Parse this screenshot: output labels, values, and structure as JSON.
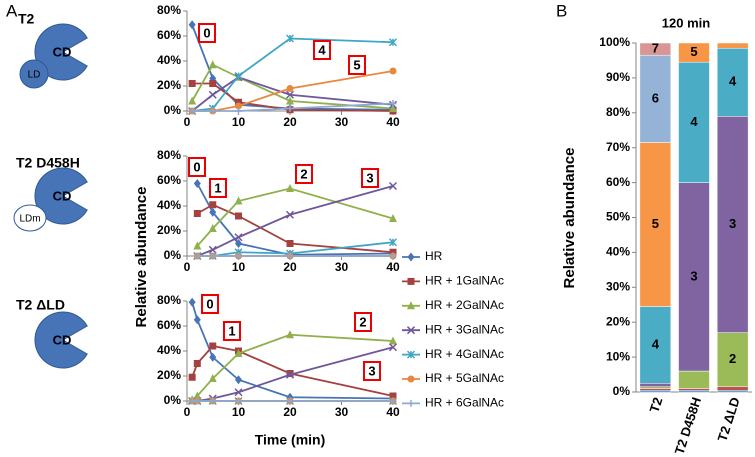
{
  "figure": {
    "panel_labels": [
      "A",
      "B"
    ],
    "constructs": [
      {
        "name": "T2",
        "domain": "CD",
        "linker": "LD"
      },
      {
        "name": "T2 D458H",
        "domain": "CD",
        "linker": "LDm"
      },
      {
        "name": "T2 ΔLD",
        "domain": "CD"
      }
    ]
  },
  "chart_data": [
    {
      "type": "line",
      "xlabel": "Time (min)",
      "ylabel": "Relative abundance",
      "xlim": [
        0,
        40
      ],
      "xticks": [
        0,
        10,
        20,
        30,
        40
      ],
      "ylim": [
        0,
        80
      ],
      "yticks": [
        {
          "value": 0,
          "label": "0%"
        },
        {
          "value": 20,
          "label": "20%"
        },
        {
          "value": 40,
          "label": "40%"
        },
        {
          "value": 60,
          "label": "60%"
        },
        {
          "value": 80,
          "label": "80%"
        }
      ],
      "series": [
        {
          "name": "HR",
          "color": "#4674b6",
          "marker": "diamond"
        },
        {
          "name": "HR + 1GalNAc",
          "color": "#a5413f",
          "marker": "square"
        },
        {
          "name": "HR + 2GalNAc",
          "color": "#8fb04b",
          "marker": "triangle"
        },
        {
          "name": "HR + 3GalNAc",
          "color": "#70569a",
          "marker": "x"
        },
        {
          "name": "HR + 4GalNAc",
          "color": "#40a6c4",
          "marker": "star"
        },
        {
          "name": "HR + 5GalNAc",
          "color": "#e8873e",
          "marker": "circle"
        },
        {
          "name": "HR + 6GalNAc",
          "color": "#8ba9d3",
          "marker": "plus"
        }
      ],
      "panels": [
        {
          "x": [
            1,
            5,
            10,
            20,
            40
          ],
          "values": [
            [
              69,
              26,
              5,
              2,
              1
            ],
            [
              22,
              22,
              7,
              1,
              0
            ],
            [
              8,
              37,
              27,
              8,
              2
            ],
            [
              0,
              13,
              27,
              13,
              5
            ],
            [
              0,
              2,
              28,
              58,
              55
            ],
            [
              0,
              0,
              4,
              18,
              32
            ],
            [
              0,
              0,
              0,
              2,
              6
            ]
          ],
          "annotations": [
            "0",
            "4",
            "5"
          ]
        },
        {
          "x": [
            2,
            5,
            10,
            20,
            40
          ],
          "values": [
            [
              58,
              35,
              10,
              1,
              2
            ],
            [
              34,
              41,
              32,
              10,
              3
            ],
            [
              8,
              22,
              44,
              54,
              30
            ],
            [
              0,
              5,
              15,
              33,
              56
            ],
            [
              0,
              0,
              3,
              2,
              11
            ],
            [
              0,
              0,
              0,
              0,
              0
            ],
            [
              0,
              0,
              0,
              0,
              0
            ]
          ],
          "annotations": [
            "0",
            "1",
            "2",
            "3"
          ]
        },
        {
          "x": [
            1,
            2,
            5,
            10,
            20,
            40
          ],
          "values": [
            [
              79,
              65,
              35,
              17,
              3,
              2
            ],
            [
              19,
              30,
              44,
              40,
              22,
              4
            ],
            [
              1,
              4,
              18,
              38,
              53,
              48
            ],
            [
              0,
              0,
              2,
              7,
              21,
              43
            ],
            [
              0,
              0,
              0,
              0,
              0,
              0
            ],
            [
              0,
              0,
              0,
              0,
              0,
              0
            ],
            [
              0,
              0,
              0,
              0,
              0,
              0
            ]
          ],
          "annotations": [
            "0",
            "1",
            "2",
            "3"
          ]
        }
      ]
    },
    {
      "type": "stacked_bar",
      "title": "120 min",
      "ylabel": "Relative abundance",
      "categories": [
        "T2",
        "T2 D458H",
        "T2 ΔLD"
      ],
      "ylim": [
        0,
        100
      ],
      "yticks": [
        {
          "value": 0,
          "label": "0%"
        },
        {
          "value": 10,
          "label": "10%"
        },
        {
          "value": 20,
          "label": "20%"
        },
        {
          "value": 30,
          "label": "30%"
        },
        {
          "value": 40,
          "label": "40%"
        },
        {
          "value": 50,
          "label": "50%"
        },
        {
          "value": 60,
          "label": "60%"
        },
        {
          "value": 70,
          "label": "70%"
        },
        {
          "value": 80,
          "label": "80%"
        },
        {
          "value": 90,
          "label": "90%"
        },
        {
          "value": 100,
          "label": "100%"
        }
      ],
      "series": [
        {
          "color": "#4a7ebb",
          "values": [
            0.5,
            0.5,
            0.5
          ]
        },
        {
          "color": "#c0504d",
          "values": [
            0.5,
            0.5,
            1
          ]
        },
        {
          "color": "#9bbb59",
          "values": [
            0.5,
            5,
            15.5
          ],
          "labels": [
            null,
            null,
            "2"
          ]
        },
        {
          "color": "#8064a2",
          "values": [
            1,
            54,
            62
          ],
          "labels": [
            null,
            "3",
            "3"
          ]
        },
        {
          "color": "#4bacc6",
          "values": [
            22,
            34.5,
            19.5
          ],
          "labels": [
            "4",
            "4",
            "4"
          ]
        },
        {
          "color": "#f79646",
          "values": [
            47,
            5.5,
            1.5
          ],
          "labels": [
            "5",
            "5",
            null
          ]
        },
        {
          "color": "#95b3d7",
          "values": [
            25,
            0,
            0
          ],
          "labels": [
            "6",
            null,
            null
          ]
        },
        {
          "color": "#d99694",
          "values": [
            3.5,
            0,
            0
          ],
          "labels": [
            "7",
            null,
            null
          ]
        }
      ]
    }
  ]
}
